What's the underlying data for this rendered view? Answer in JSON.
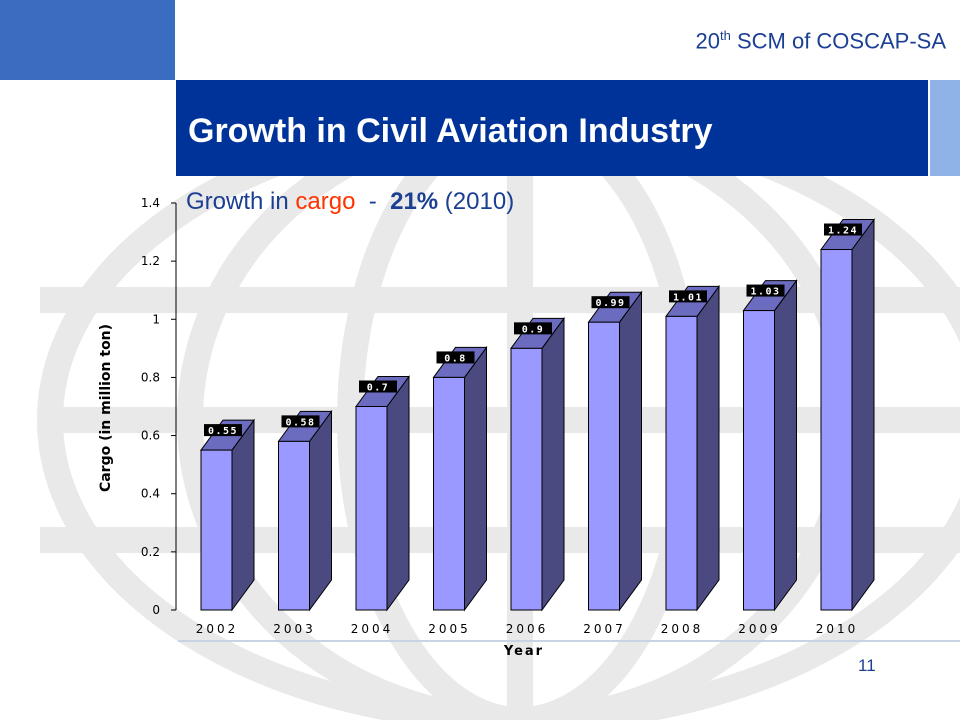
{
  "header": {
    "conference_prefix": "20",
    "conference_sup": "th",
    "conference_suffix": " SCM of COSCAP-SA"
  },
  "slide": {
    "title": "Growth in Civil Aviation Industry",
    "subtitle_prefix": "Growth in ",
    "subtitle_highlight": "cargo",
    "subtitle_sep": "  -  ",
    "subtitle_pct": "21%",
    "subtitle_year": " (2010)",
    "page_number": "11"
  },
  "colors": {
    "title_bar": "#003399",
    "bar_front": "#9999ff",
    "bar_side": "#4a4a80",
    "bar_top": "#6b6bc0",
    "highlight": "#ff3300"
  },
  "chart_data": {
    "type": "bar",
    "categories": [
      "2002",
      "2003",
      "2004",
      "2005",
      "2006",
      "2007",
      "2008",
      "2009",
      "2010"
    ],
    "values": [
      0.55,
      0.58,
      0.7,
      0.8,
      0.9,
      0.99,
      1.01,
      1.03,
      1.24
    ],
    "value_labels": [
      "0.55",
      "0.58",
      "0.7",
      "0.8",
      "0.9",
      "0.99",
      "1.01",
      "1.03",
      "1.24"
    ],
    "ylim": [
      0,
      1.4
    ],
    "yticks": [
      "0",
      "0.2",
      "0.4",
      "0.6",
      "0.8",
      "1",
      "1.2",
      "1.4"
    ],
    "xlabel": "Year",
    "ylabel": "Cargo (in million ton)",
    "style": "3d"
  }
}
